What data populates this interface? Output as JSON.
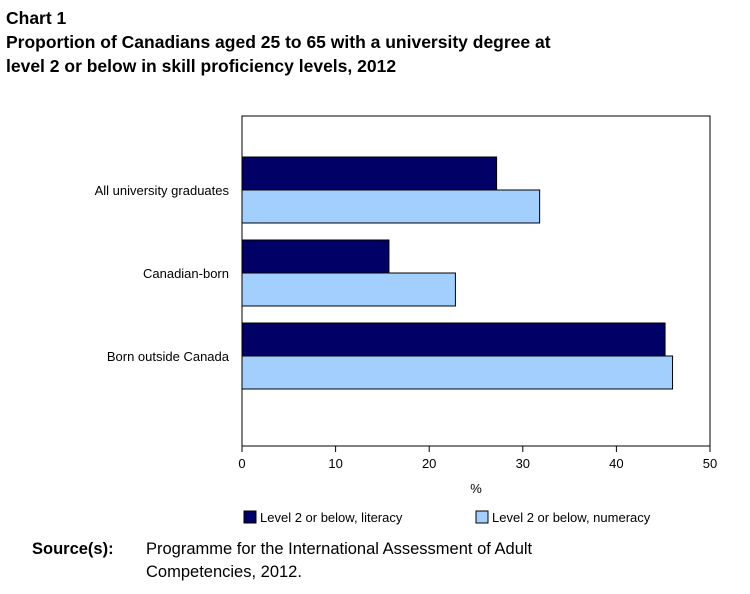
{
  "header": {
    "chart_number": "Chart 1",
    "title_line1": "Proportion of Canadians aged 25 to 65 with a university degree at",
    "title_line2": "level 2 or below in skill proficiency levels, 2012"
  },
  "chart_data": {
    "type": "bar",
    "orientation": "horizontal",
    "title": "Proportion of Canadians aged 25 to 65 with a university degree at level 2 or below in skill proficiency levels, 2012",
    "categories": [
      "All university graduates",
      "Canadian-born",
      "Born outside Canada"
    ],
    "series": [
      {
        "name": "Level 2 or below, literacy",
        "color": "#000066",
        "values": [
          27.2,
          15.7,
          45.2
        ]
      },
      {
        "name": "Level 2 or below, numeracy",
        "color": "#a3cfff",
        "values": [
          31.8,
          22.8,
          46.0
        ]
      }
    ],
    "xlabel": "%",
    "ylabel": "",
    "xlim": [
      0,
      50
    ],
    "xticks": [
      0,
      10,
      20,
      30,
      40,
      50
    ],
    "grid": false,
    "legend_position": "bottom"
  },
  "source": {
    "label": "Source(s):",
    "text": "Programme for the International Assessment of Adult Competencies, 2012."
  }
}
